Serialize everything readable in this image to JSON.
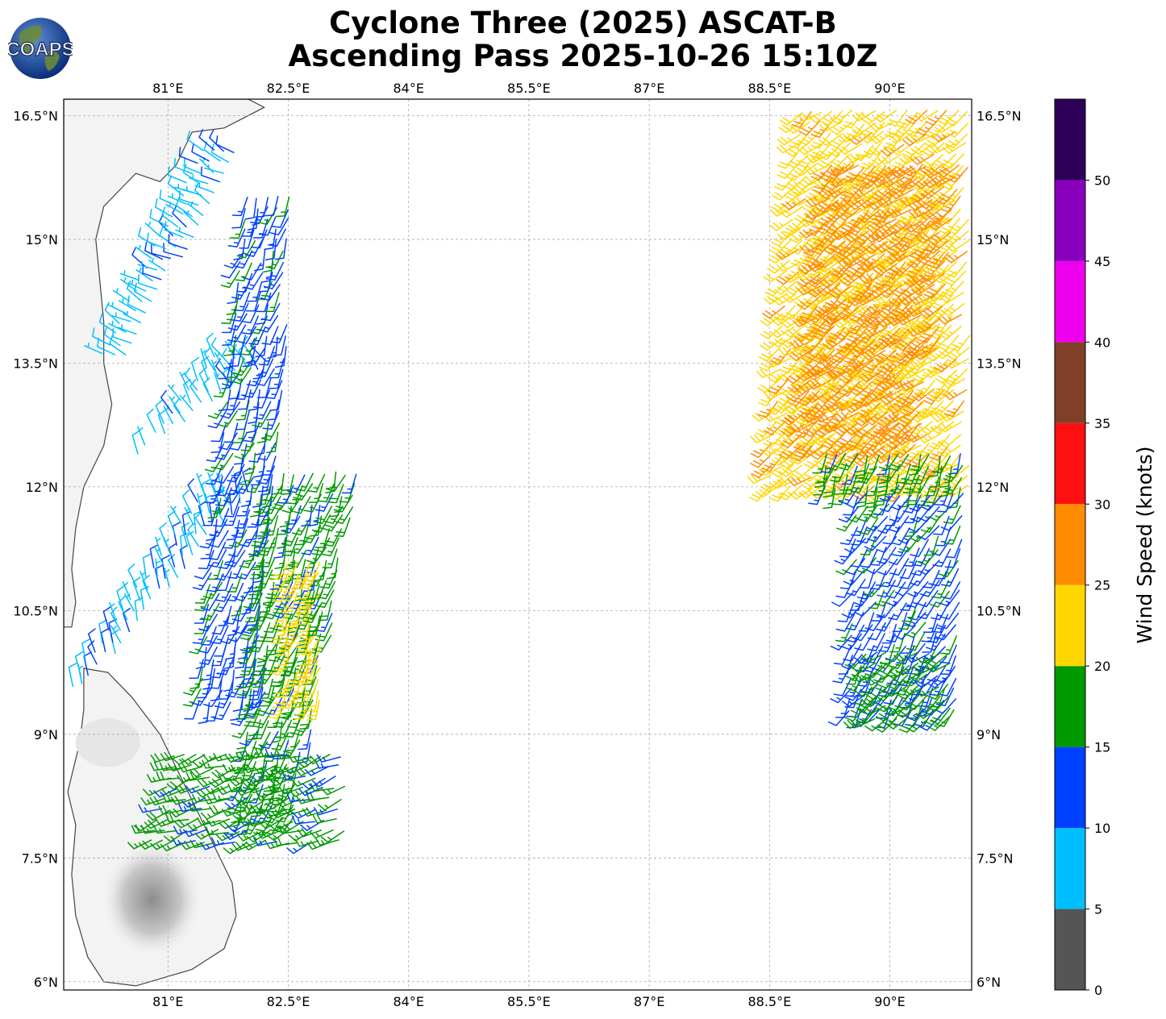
{
  "title": {
    "line1": "Cyclone Three (2025) ASCAT-B",
    "line2": "Ascending Pass 2025-10-26 15:10Z"
  },
  "logo": {
    "text": "COAPS",
    "icon": "globe-icon"
  },
  "map": {
    "lon_range": [
      79.7,
      91.02
    ],
    "lat_range": [
      5.9,
      16.7
    ],
    "lon_ticks": [
      81,
      82.5,
      84,
      85.5,
      87,
      88.5,
      90
    ],
    "lon_tick_labels": [
      "81°E",
      "82.5°E",
      "84°E",
      "85.5°E",
      "87°E",
      "88.5°E",
      "90°E"
    ],
    "lat_ticks": [
      6,
      7.5,
      9,
      10.5,
      12,
      13.5,
      15,
      16.5
    ],
    "lat_tick_labels": [
      "6°N",
      "7.5°N",
      "9°N",
      "10.5°N",
      "12°N",
      "13.5°N",
      "15°N",
      "16.5°N"
    ],
    "gridlines": true,
    "land_color": "#f3f3f3",
    "coast_color": "#444444"
  },
  "colorbar": {
    "label": "Wind Speed (knots)",
    "bounds": [
      0,
      5,
      10,
      15,
      20,
      25,
      30,
      35,
      40,
      45,
      50,
      55
    ],
    "tick_labels": [
      "0",
      "5",
      "10",
      "15",
      "20",
      "25",
      "30",
      "35",
      "40",
      "45",
      "50"
    ],
    "colors": [
      "#555555",
      "#00bfff",
      "#0040ff",
      "#009900",
      "#ffd700",
      "#ff8c00",
      "#ff1010",
      "#803f28",
      "#ee00ee",
      "#8800bb",
      "#2e0058"
    ]
  },
  "chart_data": {
    "type": "wind-barbs",
    "units": "knots",
    "regions": [
      {
        "lat": [
          13.6,
          16.2
        ],
        "lon_start": [
          80.2,
          81.5
        ],
        "lon_end": [
          80.5,
          82.0
        ],
        "dir": 300,
        "speed": 8
      },
      {
        "lat": [
          12.0,
          13.6
        ],
        "lon_start": [
          80.3,
          81.6
        ],
        "lon_end": [
          80.1,
          82.4
        ],
        "dir": 330,
        "speed": 8
      },
      {
        "lat": [
          9.6,
          12.0
        ],
        "lon_start": [
          79.8,
          81.5
        ],
        "lon_end": [
          80.0,
          82.1
        ],
        "dir": 340,
        "speed": 9
      },
      {
        "lat": [
          9.4,
          15.6
        ],
        "lon_start": [
          81.4,
          82.0
        ],
        "lon_end": [
          82.2,
          82.6
        ],
        "dir": 200,
        "speed": 13
      },
      {
        "lat": [
          8.0,
          12.2
        ],
        "lon_start": [
          81.9,
          82.3
        ],
        "lon_end": [
          82.6,
          83.4
        ],
        "dir": 200,
        "speed": 17
      },
      {
        "lat": [
          9.4,
          11.1
        ],
        "lon_start": [
          82.5,
          82.5
        ],
        "lon_end": [
          82.9,
          82.9
        ],
        "dir": 200,
        "speed": 22
      },
      {
        "lat": [
          7.7,
          8.8
        ],
        "lon_start": [
          80.8,
          81.1
        ],
        "lon_end": [
          83.2,
          83.2
        ],
        "dir": 250,
        "speed": 17
      },
      {
        "lat": [
          12.0,
          16.6
        ],
        "lon_start": [
          88.5,
          88.9
        ],
        "lon_end": [
          91.0,
          91.0
        ],
        "dir": 230,
        "speed": 23
      },
      {
        "lat": [
          12.5,
          16.0
        ],
        "lon_start": [
          88.9,
          89.3
        ],
        "lon_end": [
          90.4,
          91.0
        ],
        "dir": 230,
        "speed": 27
      },
      {
        "lat": [
          12.0,
          12.5
        ],
        "lon_start": [
          89.2,
          89.2
        ],
        "lon_end": [
          91.0,
          91.0
        ],
        "dir": 200,
        "speed": 17
      },
      {
        "lat": [
          9.3,
          12.0
        ],
        "lon_start": [
          89.5,
          89.6
        ],
        "lon_end": [
          90.8,
          91.0
        ],
        "dir": 210,
        "speed": 13
      },
      {
        "lat": [
          9.2,
          10.0
        ],
        "lon_start": [
          89.7,
          89.7
        ],
        "lon_end": [
          90.8,
          90.8
        ],
        "dir": 230,
        "speed": 17
      }
    ]
  }
}
